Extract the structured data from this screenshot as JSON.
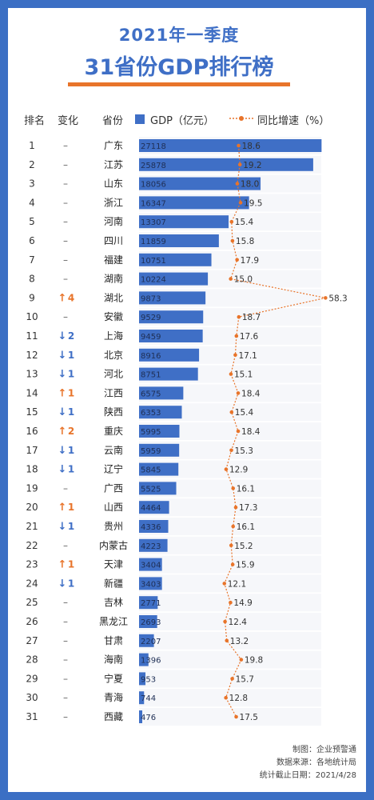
{
  "title_line1": "2021年一季度",
  "title_line2": "31省份GDP排行榜",
  "headers": {
    "rank": "排名",
    "change": "变化",
    "province": "省份",
    "gdp_legend": "GDP（亿元）",
    "growth_legend": "同比增速（%）"
  },
  "footer": {
    "maker": "制图：企业预警通",
    "source": "数据来源：各地统计局",
    "date": "统计截止日期：2021/4/28"
  },
  "colors": {
    "bar": "#3f6fc6",
    "line": "#e8742a",
    "up": "#e8742a",
    "down": "#3f6fc6"
  },
  "chart_data": {
    "type": "bar",
    "orientation": "horizontal",
    "xlim": [
      0,
      28500
    ],
    "growth_range": [
      10,
      60
    ],
    "rows": [
      {
        "rank": "1",
        "change_dir": "",
        "change": "–",
        "province": "广东",
        "gdp": 27118,
        "growth": 18.6
      },
      {
        "rank": "2",
        "change_dir": "",
        "change": "–",
        "province": "江苏",
        "gdp": 25878,
        "growth": 19.2
      },
      {
        "rank": "3",
        "change_dir": "",
        "change": "–",
        "province": "山东",
        "gdp": 18056,
        "growth": 18.0
      },
      {
        "rank": "4",
        "change_dir": "",
        "change": "–",
        "province": "浙江",
        "gdp": 16347,
        "growth": 19.5
      },
      {
        "rank": "5",
        "change_dir": "",
        "change": "–",
        "province": "河南",
        "gdp": 13307,
        "growth": 15.4
      },
      {
        "rank": "6",
        "change_dir": "",
        "change": "–",
        "province": "四川",
        "gdp": 11859,
        "growth": 15.8
      },
      {
        "rank": "7",
        "change_dir": "",
        "change": "–",
        "province": "福建",
        "gdp": 10751,
        "growth": 17.9
      },
      {
        "rank": "8",
        "change_dir": "",
        "change": "–",
        "province": "湖南",
        "gdp": 10224,
        "growth": 15.0
      },
      {
        "rank": "9",
        "change_dir": "up",
        "change": "4",
        "province": "湖北",
        "gdp": 9873,
        "growth": 58.3
      },
      {
        "rank": "10",
        "change_dir": "",
        "change": "–",
        "province": "安徽",
        "gdp": 9529,
        "growth": 18.7
      },
      {
        "rank": "11",
        "change_dir": "down",
        "change": "2",
        "province": "上海",
        "gdp": 9459,
        "growth": 17.6
      },
      {
        "rank": "12",
        "change_dir": "down",
        "change": "1",
        "province": "北京",
        "gdp": 8916,
        "growth": 17.1
      },
      {
        "rank": "13",
        "change_dir": "down",
        "change": "1",
        "province": "河北",
        "gdp": 8751,
        "growth": 15.1
      },
      {
        "rank": "14",
        "change_dir": "up",
        "change": "1",
        "province": "江西",
        "gdp": 6575,
        "growth": 18.4
      },
      {
        "rank": "15",
        "change_dir": "down",
        "change": "1",
        "province": "陕西",
        "gdp": 6353,
        "growth": 15.4
      },
      {
        "rank": "16",
        "change_dir": "up",
        "change": "2",
        "province": "重庆",
        "gdp": 5995,
        "growth": 18.4
      },
      {
        "rank": "17",
        "change_dir": "down",
        "change": "1",
        "province": "云南",
        "gdp": 5959,
        "growth": 15.3
      },
      {
        "rank": "18",
        "change_dir": "down",
        "change": "1",
        "province": "辽宁",
        "gdp": 5845,
        "growth": 12.9
      },
      {
        "rank": "19",
        "change_dir": "",
        "change": "–",
        "province": "广西",
        "gdp": 5525,
        "growth": 16.1
      },
      {
        "rank": "20",
        "change_dir": "up",
        "change": "1",
        "province": "山西",
        "gdp": 4464,
        "growth": 17.3
      },
      {
        "rank": "21",
        "change_dir": "down",
        "change": "1",
        "province": "贵州",
        "gdp": 4336,
        "growth": 16.1
      },
      {
        "rank": "22",
        "change_dir": "",
        "change": "–",
        "province": "内蒙古",
        "gdp": 4223,
        "growth": 15.2
      },
      {
        "rank": "23",
        "change_dir": "up",
        "change": "1",
        "province": "天津",
        "gdp": 3404,
        "growth": 15.9
      },
      {
        "rank": "24",
        "change_dir": "down",
        "change": "1",
        "province": "新疆",
        "gdp": 3403,
        "growth": 12.1
      },
      {
        "rank": "25",
        "change_dir": "",
        "change": "–",
        "province": "吉林",
        "gdp": 2771,
        "growth": 14.9
      },
      {
        "rank": "26",
        "change_dir": "",
        "change": "–",
        "province": "黑龙江",
        "gdp": 2693,
        "growth": 12.4
      },
      {
        "rank": "27",
        "change_dir": "",
        "change": "–",
        "province": "甘肃",
        "gdp": 2207,
        "growth": 13.2
      },
      {
        "rank": "28",
        "change_dir": "",
        "change": "–",
        "province": "海南",
        "gdp": 1396,
        "growth": 19.8
      },
      {
        "rank": "29",
        "change_dir": "",
        "change": "–",
        "province": "宁夏",
        "gdp": 953,
        "growth": 15.7
      },
      {
        "rank": "30",
        "change_dir": "",
        "change": "–",
        "province": "青海",
        "gdp": 744,
        "growth": 12.8
      },
      {
        "rank": "31",
        "change_dir": "",
        "change": "–",
        "province": "西藏",
        "gdp": 476,
        "growth": 17.5
      }
    ]
  }
}
